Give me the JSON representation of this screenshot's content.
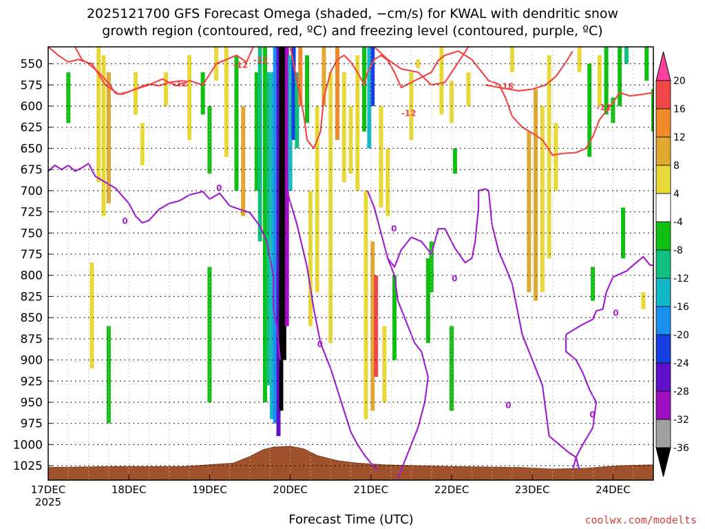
{
  "chart_data": {
    "type": "heatmap",
    "title_line1": "2025121700 GFS Forecast Omega (shaded, −cm/s) for KWAL with dendritic snow",
    "title_line2": "growth region (contoured, red, ºC) and freezing level (contoured, purple, ºC)",
    "xlabel": "Forecast Time (UTC)",
    "credit": "coolwx.com/modelts",
    "x_ticks": [
      "17DEC",
      "18DEC",
      "19DEC",
      "20DEC",
      "21DEC",
      "22DEC",
      "23DEC",
      "24DEC"
    ],
    "x_year": "2025",
    "y_levels": [
      "550",
      "575",
      "600",
      "625",
      "650",
      "675",
      "700",
      "725",
      "750",
      "775",
      "800",
      "825",
      "850",
      "875",
      "900",
      "925",
      "950",
      "975",
      "1000",
      "1025"
    ],
    "y_range_hpa": [
      530,
      1042
    ],
    "x_range_hours": [
      0,
      180
    ],
    "colorbar": {
      "labels": [
        "20",
        "16",
        "12",
        "8",
        "4",
        "-4",
        "-8",
        "-12",
        "-16",
        "-20",
        "-24",
        "-28",
        "-32",
        "-36"
      ],
      "colors": [
        "#ff3fa0",
        "#f04848",
        "#f08a2a",
        "#e0a830",
        "#e8d838",
        "#ffffff",
        "#10c010",
        "#10c080",
        "#10b8c8",
        "#1890f0",
        "#1840e0",
        "#6010c8",
        "#a010c0",
        "#a0a0a0",
        "#000000"
      ]
    },
    "contour_labels": {
      "dgz_red": [
        "-12",
        "-12",
        "-12",
        "-12",
        "-18",
        "-12"
      ],
      "freezing_purple": [
        "0",
        "0",
        "0",
        "0",
        "0",
        "0",
        "0",
        "0"
      ]
    },
    "omega_bands": [
      {
        "t": 6,
        "p1": 560,
        "p2": 620,
        "c": "#10c010"
      },
      {
        "t": 15,
        "p1": 530,
        "p2": 690,
        "c": "#e8d838"
      },
      {
        "t": 16.5,
        "p1": 540,
        "p2": 730,
        "c": "#e8d838"
      },
      {
        "t": 18,
        "p1": 560,
        "p2": 715,
        "c": "#e0a830"
      },
      {
        "t": 13,
        "p1": 785,
        "p2": 910,
        "c": "#e8d838"
      },
      {
        "t": 18,
        "p1": 860,
        "p2": 975,
        "c": "#10c010"
      },
      {
        "t": 26,
        "p1": 560,
        "p2": 610,
        "c": "#e8d838"
      },
      {
        "t": 28,
        "p1": 620,
        "p2": 670,
        "c": "#e8d838"
      },
      {
        "t": 35,
        "p1": 560,
        "p2": 600,
        "c": "#e8d838"
      },
      {
        "t": 42,
        "p1": 540,
        "p2": 640,
        "c": "#e8d838"
      },
      {
        "t": 46,
        "p1": 560,
        "p2": 610,
        "c": "#10c010"
      },
      {
        "t": 48,
        "p1": 600,
        "p2": 680,
        "c": "#10c010"
      },
      {
        "t": 48,
        "p1": 790,
        "p2": 950,
        "c": "#10c010"
      },
      {
        "t": 50,
        "p1": 530,
        "p2": 570,
        "c": "#e8d838"
      },
      {
        "t": 53,
        "p1": 530,
        "p2": 660,
        "c": "#e8d838"
      },
      {
        "t": 56,
        "p1": 540,
        "p2": 700,
        "c": "#10c010"
      },
      {
        "t": 58,
        "p1": 600,
        "p2": 730,
        "c": "#e0a830"
      },
      {
        "t": 62,
        "p1": 560,
        "p2": 700,
        "c": "#10c010"
      },
      {
        "t": 63,
        "p1": 530,
        "p2": 760,
        "c": "#10c080"
      },
      {
        "t": 64.5,
        "p1": 530,
        "p2": 950,
        "c": "#10c010"
      },
      {
        "t": 65.5,
        "p1": 560,
        "p2": 930,
        "c": "#10c080"
      },
      {
        "t": 66.5,
        "p1": 560,
        "p2": 970,
        "c": "#10b8c8"
      },
      {
        "t": 67.5,
        "p1": 530,
        "p2": 975,
        "c": "#1890f0"
      },
      {
        "t": 68.5,
        "p1": 530,
        "p2": 990,
        "c": "#6010c8"
      },
      {
        "t": 69.3,
        "p1": 530,
        "p2": 960,
        "c": "#000000"
      },
      {
        "t": 70.2,
        "p1": 530,
        "p2": 900,
        "c": "#000000"
      },
      {
        "t": 71,
        "p1": 530,
        "p2": 860,
        "c": "#a010c0"
      },
      {
        "t": 72,
        "p1": 540,
        "p2": 700,
        "c": "#10b8c8"
      },
      {
        "t": 73,
        "p1": 530,
        "p2": 640,
        "c": "#1840e0"
      },
      {
        "t": 74,
        "p1": 560,
        "p2": 650,
        "c": "#10c080"
      },
      {
        "t": 75,
        "p1": 530,
        "p2": 600,
        "c": "#f08a2a"
      },
      {
        "t": 77,
        "p1": 540,
        "p2": 620,
        "c": "#10c010"
      },
      {
        "t": 78,
        "p1": 700,
        "p2": 860,
        "c": "#e8d838"
      },
      {
        "t": 80,
        "p1": 600,
        "p2": 820,
        "c": "#e8d838"
      },
      {
        "t": 82,
        "p1": 530,
        "p2": 600,
        "c": "#e0a830"
      },
      {
        "t": 84,
        "p1": 560,
        "p2": 880,
        "c": "#e8d838"
      },
      {
        "t": 86,
        "p1": 530,
        "p2": 640,
        "c": "#f08a2a"
      },
      {
        "t": 88,
        "p1": 560,
        "p2": 690,
        "c": "#e8d838"
      },
      {
        "t": 90,
        "p1": 600,
        "p2": 680,
        "c": "#e8d838"
      },
      {
        "t": 92,
        "p1": 540,
        "p2": 700,
        "c": "#e8d838"
      },
      {
        "t": 94,
        "p1": 530,
        "p2": 630,
        "c": "#10c010"
      },
      {
        "t": 94.5,
        "p1": 700,
        "p2": 970,
        "c": "#e8d838"
      },
      {
        "t": 95.5,
        "p1": 530,
        "p2": 650,
        "c": "#10b8c8"
      },
      {
        "t": 96.5,
        "p1": 530,
        "p2": 600,
        "c": "#1840e0"
      },
      {
        "t": 96.5,
        "p1": 760,
        "p2": 960,
        "c": "#e0a830"
      },
      {
        "t": 97.5,
        "p1": 800,
        "p2": 920,
        "c": "#f04848"
      },
      {
        "t": 99,
        "p1": 600,
        "p2": 720,
        "c": "#e8d838"
      },
      {
        "t": 100,
        "p1": 860,
        "p2": 950,
        "c": "#e8d838"
      },
      {
        "t": 101,
        "p1": 650,
        "p2": 730,
        "c": "#e8d838"
      },
      {
        "t": 103,
        "p1": 800,
        "p2": 900,
        "c": "#10c010"
      },
      {
        "t": 108,
        "p1": 560,
        "p2": 640,
        "c": "#e8d838"
      },
      {
        "t": 110,
        "p1": 545,
        "p2": 555,
        "c": "#e8d838"
      },
      {
        "t": 113,
        "p1": 780,
        "p2": 880,
        "c": "#10c010"
      },
      {
        "t": 114,
        "p1": 760,
        "p2": 820,
        "c": "#10c010"
      },
      {
        "t": 117,
        "p1": 530,
        "p2": 610,
        "c": "#e8d838"
      },
      {
        "t": 120,
        "p1": 570,
        "p2": 620,
        "c": "#e8d838"
      },
      {
        "t": 120,
        "p1": 860,
        "p2": 960,
        "c": "#10c010"
      },
      {
        "t": 121,
        "p1": 650,
        "p2": 680,
        "c": "#10c010"
      },
      {
        "t": 125,
        "p1": 560,
        "p2": 600,
        "c": "#e8d838"
      },
      {
        "t": 138,
        "p1": 530,
        "p2": 560,
        "c": "#e8d838"
      },
      {
        "t": 143,
        "p1": 630,
        "p2": 820,
        "c": "#e0a830"
      },
      {
        "t": 145,
        "p1": 580,
        "p2": 830,
        "c": "#e0a830"
      },
      {
        "t": 147,
        "p1": 600,
        "p2": 820,
        "c": "#e8d838"
      },
      {
        "t": 149,
        "p1": 540,
        "p2": 780,
        "c": "#e8d838"
      },
      {
        "t": 151,
        "p1": 620,
        "p2": 700,
        "c": "#e8d838"
      },
      {
        "t": 158,
        "p1": 530,
        "p2": 560,
        "c": "#e8d838"
      },
      {
        "t": 161,
        "p1": 550,
        "p2": 660,
        "c": "#10c010"
      },
      {
        "t": 162,
        "p1": 790,
        "p2": 830,
        "c": "#10c010"
      },
      {
        "t": 164,
        "p1": 540,
        "p2": 600,
        "c": "#e8d838"
      },
      {
        "t": 166,
        "p1": 530,
        "p2": 610,
        "c": "#10c010"
      },
      {
        "t": 168,
        "p1": 590,
        "p2": 620,
        "c": "#10c010"
      },
      {
        "t": 170,
        "p1": 530,
        "p2": 600,
        "c": "#10c010"
      },
      {
        "t": 171,
        "p1": 720,
        "p2": 780,
        "c": "#10c010"
      },
      {
        "t": 172,
        "p1": 530,
        "p2": 550,
        "c": "#10c080"
      },
      {
        "t": 177,
        "p1": 820,
        "p2": 840,
        "c": "#e8d838"
      },
      {
        "t": 178,
        "p1": 530,
        "p2": 570,
        "c": "#10c010"
      },
      {
        "t": 180,
        "p1": 580,
        "p2": 630,
        "c": "#10c010"
      }
    ],
    "dgz_upper_line": [
      [
        8,
        530
      ],
      [
        10,
        545
      ],
      [
        12,
        550
      ],
      [
        15,
        560
      ],
      [
        18,
        573
      ],
      [
        20,
        585
      ],
      [
        22,
        586
      ],
      [
        26,
        580
      ],
      [
        30,
        575
      ],
      [
        34,
        568
      ],
      [
        38,
        576
      ],
      [
        42,
        570
      ],
      [
        46,
        575
      ],
      [
        50,
        550
      ],
      [
        53,
        545
      ],
      [
        56,
        540
      ],
      [
        59,
        548
      ],
      [
        61,
        530
      ]
    ],
    "dgz_left_line": [
      [
        0,
        530
      ],
      [
        3,
        540
      ],
      [
        6,
        548
      ],
      [
        9,
        545
      ],
      [
        13,
        550
      ],
      [
        17,
        575
      ],
      [
        21,
        586
      ],
      [
        24,
        583
      ],
      [
        27,
        578
      ],
      [
        30,
        574
      ],
      [
        33,
        576
      ],
      [
        36,
        572
      ],
      [
        40,
        570
      ]
    ],
    "dgz_right_line": [
      [
        72,
        530
      ],
      [
        74,
        570
      ],
      [
        76,
        610
      ],
      [
        77,
        640
      ],
      [
        79,
        650
      ],
      [
        81,
        630
      ],
      [
        82,
        590
      ],
      [
        84,
        560
      ],
      [
        86,
        545
      ],
      [
        88,
        540
      ],
      [
        90,
        548
      ],
      [
        92,
        560
      ],
      [
        94,
        575
      ],
      [
        95,
        560
      ],
      [
        97,
        545
      ],
      [
        99,
        540
      ],
      [
        101,
        546
      ],
      [
        103,
        560
      ],
      [
        105,
        578
      ],
      [
        108,
        572
      ],
      [
        111,
        566
      ],
      [
        114,
        560
      ],
      [
        116,
        546
      ],
      [
        118,
        540
      ],
      [
        122,
        535
      ],
      [
        126,
        545
      ],
      [
        129,
        560
      ],
      [
        131,
        570
      ],
      [
        134,
        574
      ],
      [
        136,
        590
      ],
      [
        138,
        612
      ],
      [
        141,
        625
      ],
      [
        144,
        632
      ],
      [
        147,
        640
      ],
      [
        150,
        658
      ],
      [
        153,
        656
      ],
      [
        157,
        655
      ],
      [
        160,
        650
      ],
      [
        162,
        636
      ],
      [
        164,
        616
      ],
      [
        166,
        606
      ],
      [
        168,
        596
      ],
      [
        170,
        584
      ],
      [
        173,
        588
      ],
      [
        177,
        586
      ],
      [
        180,
        584
      ]
    ],
    "dgz_right_upper": [
      [
        97,
        530
      ],
      [
        101,
        545
      ],
      [
        105,
        556
      ],
      [
        110,
        560
      ],
      [
        114,
        575
      ],
      [
        118,
        572
      ],
      [
        122,
        548
      ],
      [
        125,
        530
      ]
    ],
    "dgz_18_line": [
      [
        130,
        575
      ],
      [
        134,
        578
      ],
      [
        137,
        580
      ],
      [
        140,
        582
      ],
      [
        144,
        580
      ],
      [
        148,
        575
      ],
      [
        151,
        565
      ],
      [
        154,
        548
      ],
      [
        156,
        535
      ]
    ],
    "fz_line1": [
      [
        0,
        677
      ],
      [
        2,
        670
      ],
      [
        4,
        675
      ],
      [
        6,
        670
      ],
      [
        8,
        677
      ],
      [
        10,
        673
      ],
      [
        12,
        668
      ],
      [
        14,
        683
      ],
      [
        17,
        690
      ],
      [
        20,
        697
      ],
      [
        24,
        715
      ],
      [
        26,
        730
      ],
      [
        28,
        738
      ],
      [
        30,
        735
      ],
      [
        33,
        722
      ],
      [
        36,
        715
      ],
      [
        39,
        712
      ],
      [
        42,
        705
      ],
      [
        46,
        701
      ],
      [
        48,
        710
      ],
      [
        51,
        703
      ],
      [
        54,
        718
      ],
      [
        57,
        722
      ],
      [
        60,
        726
      ],
      [
        63,
        742
      ],
      [
        65,
        760
      ],
      [
        66,
        780
      ],
      [
        67,
        800
      ],
      [
        67,
        840
      ],
      [
        68,
        860
      ],
      [
        69,
        900
      ]
    ],
    "fz_line2": [
      [
        71,
        700
      ],
      [
        74,
        740
      ],
      [
        77,
        790
      ],
      [
        79,
        840
      ],
      [
        81,
        880
      ],
      [
        84,
        910
      ],
      [
        86,
        935
      ],
      [
        88,
        960
      ],
      [
        90,
        985
      ],
      [
        92,
        1000
      ],
      [
        94,
        1012
      ],
      [
        96,
        1022
      ],
      [
        98,
        1030
      ]
    ],
    "fz_line3": [
      [
        95,
        700
      ],
      [
        97,
        720
      ],
      [
        99,
        750
      ],
      [
        101,
        780
      ],
      [
        103,
        800
      ],
      [
        104,
        830
      ],
      [
        106,
        850
      ],
      [
        109,
        880
      ],
      [
        111,
        890
      ],
      [
        113,
        920
      ],
      [
        112,
        950
      ],
      [
        110,
        980
      ],
      [
        108,
        1000
      ],
      [
        106,
        1020
      ],
      [
        104,
        1040
      ]
    ],
    "fz_line4": [
      [
        101,
        780
      ],
      [
        103,
        790
      ],
      [
        105,
        770
      ],
      [
        108,
        755
      ],
      [
        111,
        760
      ],
      [
        114,
        775
      ],
      [
        116,
        745
      ],
      [
        118,
        745
      ],
      [
        121,
        768
      ],
      [
        124,
        785
      ],
      [
        126,
        780
      ],
      [
        127,
        760
      ],
      [
        128,
        720
      ],
      [
        128,
        700
      ],
      [
        130,
        698
      ],
      [
        131,
        700
      ],
      [
        132,
        740
      ],
      [
        134,
        772
      ],
      [
        136,
        790
      ],
      [
        138,
        810
      ],
      [
        139,
        830
      ],
      [
        140,
        850
      ],
      [
        141,
        870
      ],
      [
        143,
        890
      ],
      [
        145,
        910
      ],
      [
        147,
        930
      ],
      [
        148,
        960
      ],
      [
        149,
        990
      ],
      [
        152,
        1000
      ],
      [
        155,
        1010
      ],
      [
        157,
        1015
      ],
      [
        158,
        1030
      ]
    ],
    "fz_line5": [
      [
        154,
        870
      ],
      [
        156,
        865
      ],
      [
        159,
        858
      ],
      [
        162,
        852
      ],
      [
        163,
        842
      ],
      [
        165,
        840
      ],
      [
        166,
        820
      ],
      [
        168,
        802
      ],
      [
        172,
        795
      ],
      [
        174,
        788
      ],
      [
        177,
        778
      ],
      [
        179,
        788
      ],
      [
        180,
        788
      ]
    ],
    "fz_line6": [
      [
        154,
        870
      ],
      [
        154,
        890
      ],
      [
        157,
        900
      ],
      [
        159,
        915
      ],
      [
        161,
        935
      ],
      [
        163,
        950
      ],
      [
        162,
        980
      ],
      [
        159,
        1000
      ],
      [
        157,
        1015
      ],
      [
        156,
        1030
      ]
    ],
    "terrain": [
      [
        0,
        1027
      ],
      [
        20,
        1026
      ],
      [
        40,
        1026
      ],
      [
        55,
        1022
      ],
      [
        60,
        1014
      ],
      [
        64,
        1006
      ],
      [
        67,
        1003
      ],
      [
        72,
        1002
      ],
      [
        76,
        1005
      ],
      [
        80,
        1013
      ],
      [
        86,
        1019
      ],
      [
        92,
        1022
      ],
      [
        100,
        1024
      ],
      [
        120,
        1026
      ],
      [
        140,
        1027
      ],
      [
        150,
        1029
      ],
      [
        160,
        1028
      ],
      [
        170,
        1025
      ],
      [
        180,
        1024
      ]
    ]
  }
}
